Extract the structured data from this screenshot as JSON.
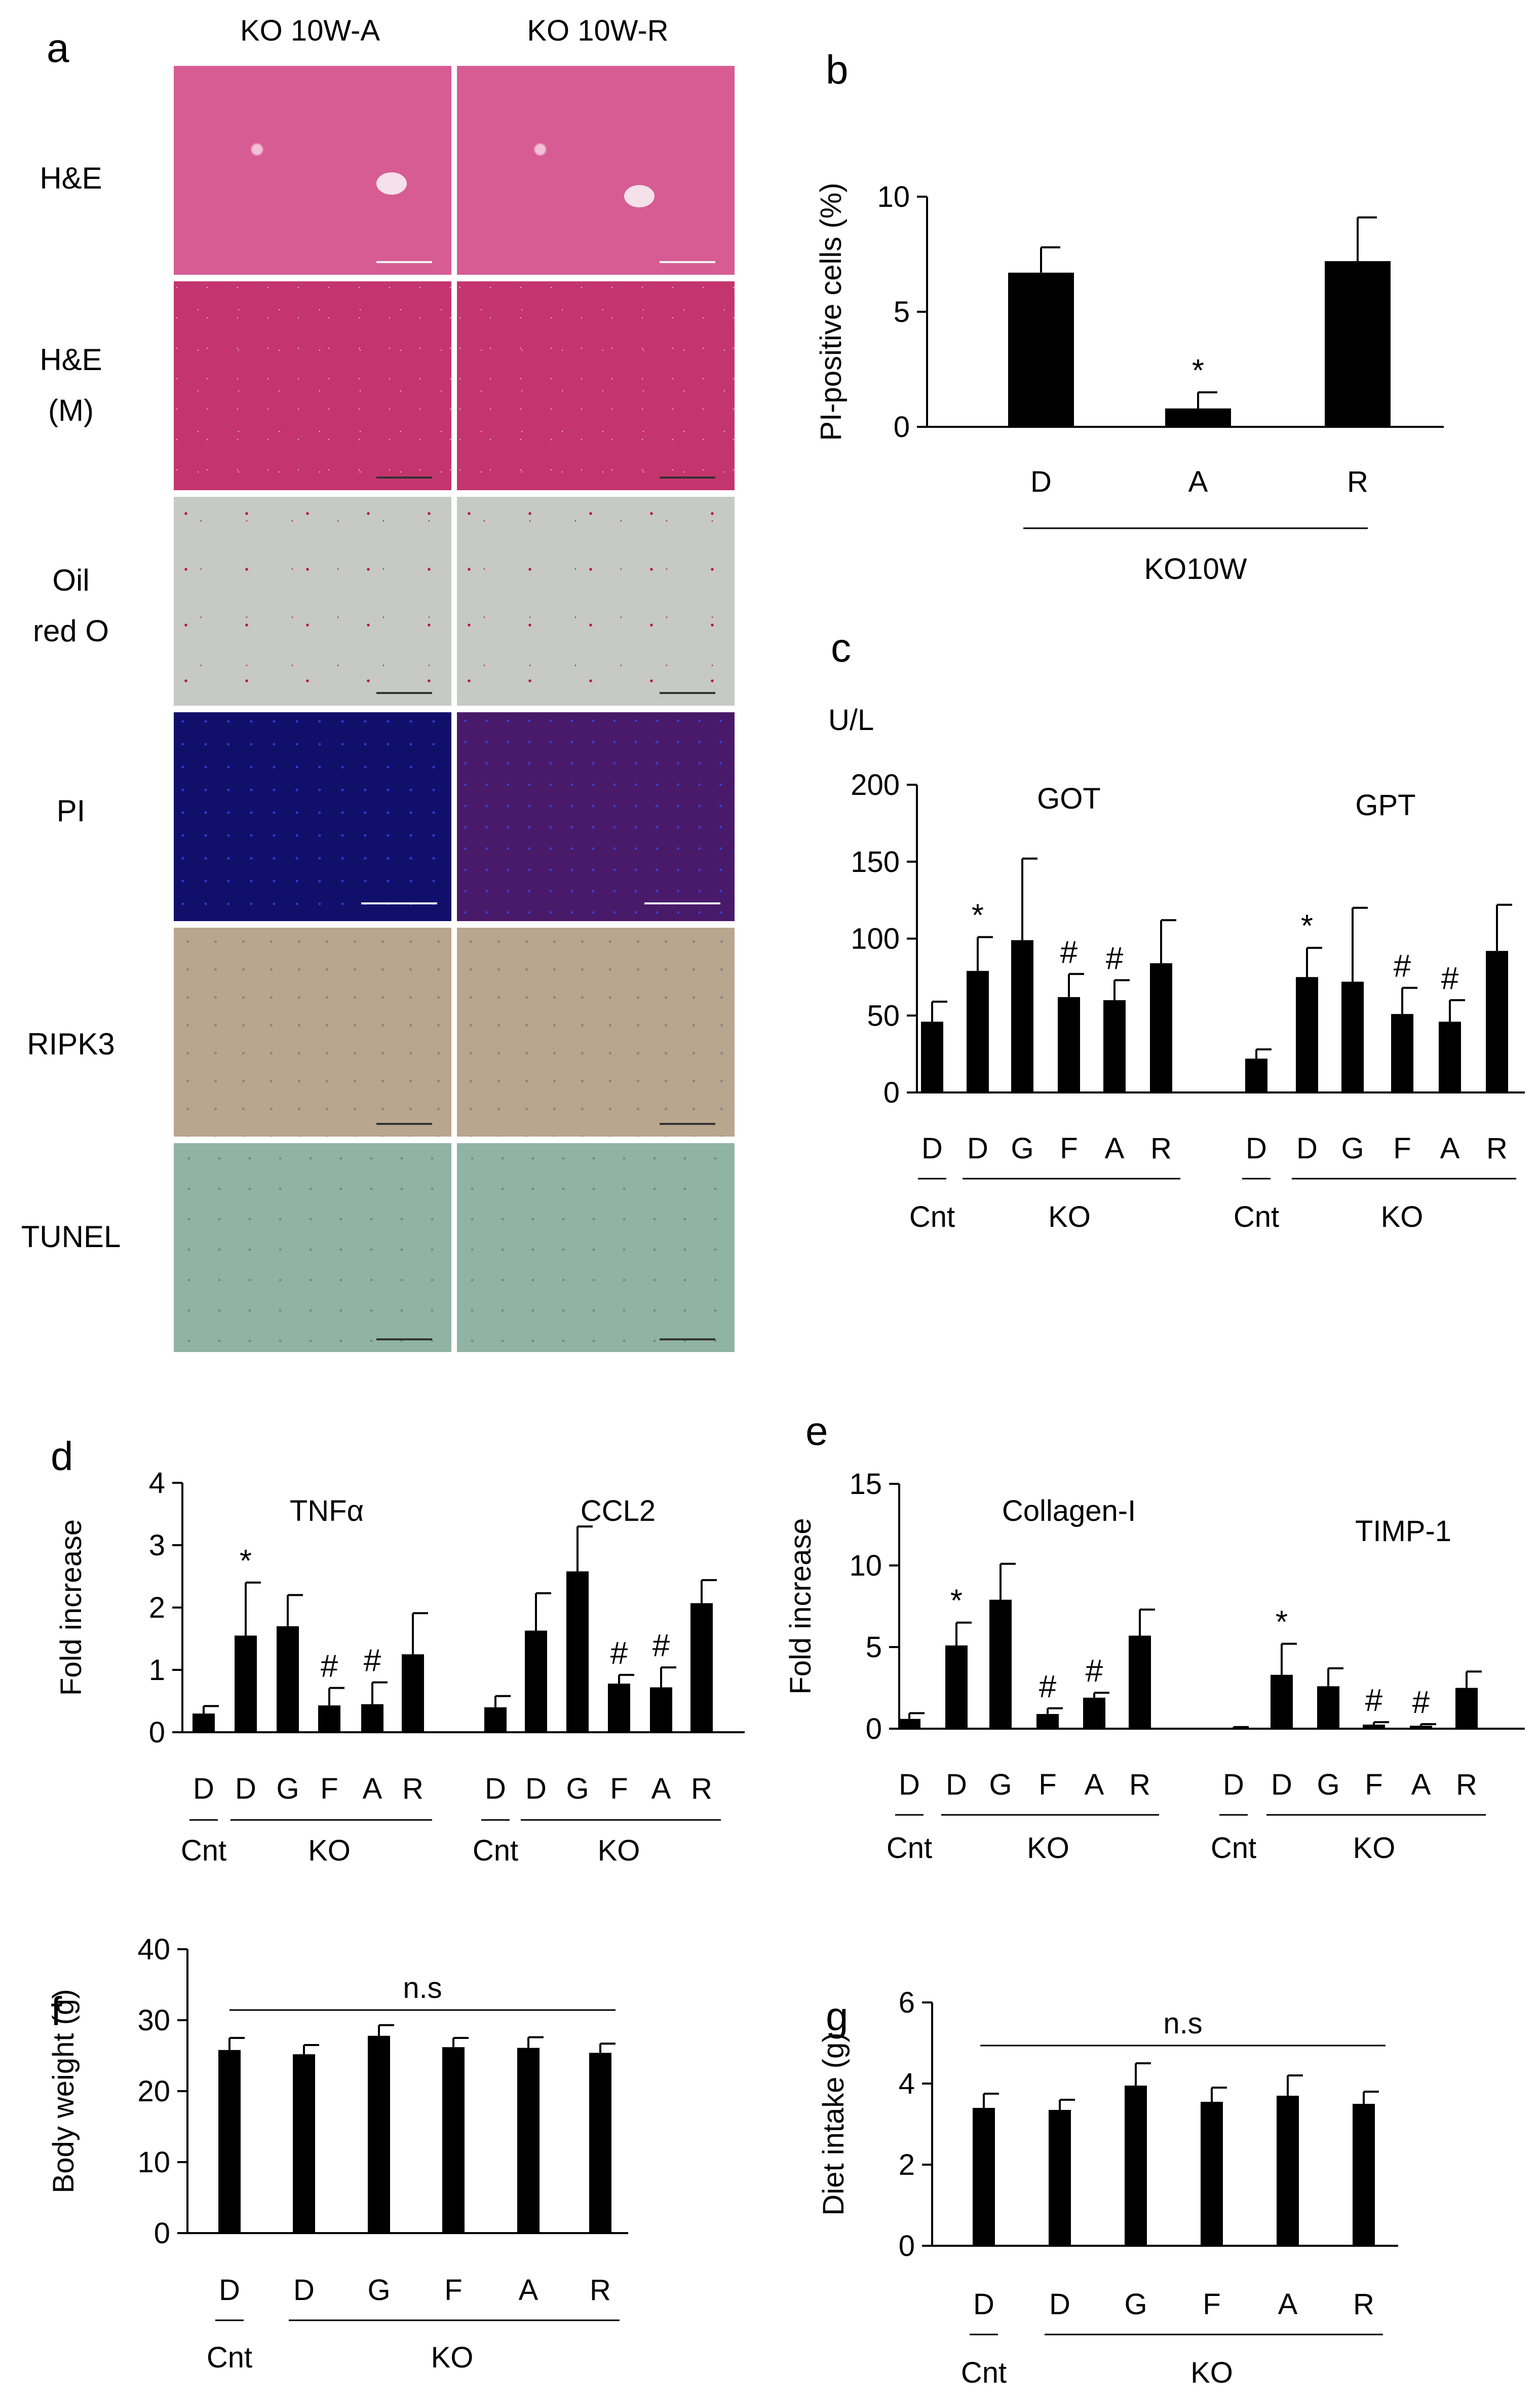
{
  "panel_a": {
    "letter": "a",
    "columns": [
      "KO 10W-A",
      "KO 10W-R"
    ],
    "rows": [
      {
        "label_lines": [
          "H&E"
        ],
        "stain": "he"
      },
      {
        "label_lines": [
          "H&E",
          "(M)"
        ],
        "stain": "hem"
      },
      {
        "label_lines": [
          "Oil",
          "red O"
        ],
        "stain": "oil"
      },
      {
        "label_lines": [
          "PI"
        ],
        "stain": "pi"
      },
      {
        "label_lines": [
          "RIPK3"
        ],
        "stain": "ripk"
      },
      {
        "label_lines": [
          "TUNEL"
        ],
        "stain": "tunel"
      }
    ]
  },
  "chart_data": [
    {
      "panel": "b",
      "type": "bar",
      "ylabel": "PI-positive cells (%)",
      "ylim": [
        0,
        10
      ],
      "yticks": [
        0,
        5,
        10
      ],
      "categories": [
        "D",
        "A",
        "R"
      ],
      "values": [
        6.7,
        0.8,
        7.2
      ],
      "errors": [
        1.1,
        0.7,
        1.9
      ],
      "marks": [
        "",
        "*",
        ""
      ],
      "group_label": "KO10W"
    },
    {
      "panel": "c",
      "type": "bar",
      "unit_label": "U/L",
      "ylim": [
        0,
        200
      ],
      "yticks": [
        0,
        50,
        100,
        150,
        200
      ],
      "groups": [
        {
          "name": "GOT",
          "categories": [
            "D",
            "D",
            "G",
            "F",
            "A",
            "R"
          ],
          "values": [
            46,
            79,
            99,
            62,
            60,
            84
          ],
          "errors": [
            13,
            22,
            53,
            15,
            13,
            28
          ],
          "marks": [
            "",
            "*",
            "",
            "#",
            "#",
            ""
          ]
        },
        {
          "name": "GPT",
          "categories": [
            "D",
            "D",
            "G",
            "F",
            "A",
            "R"
          ],
          "values": [
            22,
            75,
            72,
            51,
            46,
            92
          ],
          "errors": [
            6,
            19,
            48,
            17,
            14,
            30
          ],
          "marks": [
            "",
            "*",
            "",
            "#",
            "#",
            ""
          ]
        }
      ],
      "cnt_label": "Cnt",
      "ko_label": "KO"
    },
    {
      "panel": "d",
      "type": "bar",
      "ylabel": "Fold increase",
      "ylim": [
        0,
        4
      ],
      "yticks": [
        0,
        1,
        2,
        3,
        4
      ],
      "groups": [
        {
          "name": "TNFα",
          "categories": [
            "D",
            "D",
            "G",
            "F",
            "A",
            "R"
          ],
          "values": [
            0.3,
            1.55,
            1.7,
            0.43,
            0.45,
            1.25
          ],
          "errors": [
            0.12,
            0.85,
            0.5,
            0.28,
            0.35,
            0.66
          ],
          "marks": [
            "",
            "*",
            "",
            "#",
            "#",
            ""
          ]
        },
        {
          "name": "CCL2",
          "categories": [
            "D",
            "D",
            "G",
            "F",
            "A",
            "R"
          ],
          "values": [
            0.4,
            1.63,
            2.58,
            0.78,
            0.72,
            2.07
          ],
          "errors": [
            0.18,
            0.6,
            0.72,
            0.14,
            0.32,
            0.37
          ],
          "marks": [
            "",
            "",
            "",
            "#",
            "#",
            ""
          ]
        }
      ],
      "cnt_label": "Cnt",
      "ko_label": "KO"
    },
    {
      "panel": "e",
      "type": "bar",
      "ylabel": "Fold increase",
      "ylim": [
        0,
        15
      ],
      "yticks": [
        0,
        5,
        10,
        15
      ],
      "groups": [
        {
          "name": "Collagen-I",
          "categories": [
            "D",
            "D",
            "G",
            "F",
            "A",
            "R"
          ],
          "values": [
            0.6,
            5.1,
            7.9,
            0.9,
            1.9,
            5.7
          ],
          "errors": [
            0.35,
            1.4,
            2.2,
            0.35,
            0.3,
            1.6
          ],
          "marks": [
            "",
            "*",
            "",
            "#",
            "#",
            ""
          ]
        },
        {
          "name": "TIMP-1",
          "categories": [
            "D",
            "D",
            "G",
            "F",
            "A",
            "R"
          ],
          "values": [
            0.05,
            3.3,
            2.6,
            0.25,
            0.18,
            2.5
          ],
          "errors": [
            0.05,
            1.9,
            1.1,
            0.15,
            0.1,
            1.0
          ],
          "marks": [
            "",
            "*",
            "",
            "#",
            "#",
            ""
          ]
        }
      ],
      "cnt_label": "Cnt",
      "ko_label": "KO"
    },
    {
      "panel": "f",
      "type": "bar",
      "ylabel": "Body weight (g)",
      "ylim": [
        0,
        40
      ],
      "yticks": [
        0,
        10,
        20,
        30,
        40
      ],
      "categories": [
        "D",
        "D",
        "G",
        "F",
        "A",
        "R"
      ],
      "values": [
        25.8,
        25.2,
        27.8,
        26.2,
        26.1,
        25.4
      ],
      "errors": [
        1.7,
        1.3,
        1.5,
        1.3,
        1.5,
        1.3
      ],
      "annotation": "n.s",
      "cnt_label": "Cnt",
      "ko_label": "KO"
    },
    {
      "panel": "g",
      "type": "bar",
      "ylabel": "Diet intake (g)",
      "ylim": [
        0,
        6
      ],
      "yticks": [
        0,
        2,
        4,
        6
      ],
      "categories": [
        "D",
        "D",
        "G",
        "F",
        "A",
        "R"
      ],
      "values": [
        3.4,
        3.35,
        3.95,
        3.55,
        3.7,
        3.5
      ],
      "errors": [
        0.35,
        0.25,
        0.55,
        0.35,
        0.5,
        0.3
      ],
      "annotation": "n.s",
      "cnt_label": "Cnt",
      "ko_label": "KO"
    }
  ]
}
